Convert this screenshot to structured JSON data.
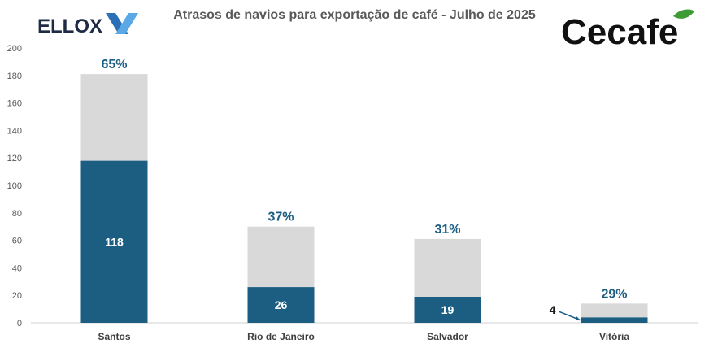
{
  "title": "Atrasos de navios para exportação de café - Julho de 2025",
  "logos": {
    "left": "ELLOX",
    "right": "Cecafe"
  },
  "colors": {
    "delayed": "#1b5e82",
    "total": "#d9d9d9",
    "percent_label": "#1b5e82",
    "small_label": "#1a1a1a"
  },
  "chart_data": {
    "type": "bar",
    "stacked": true,
    "categories": [
      "Santos",
      "Rio de Janeiro",
      "Salvador",
      "Vitória"
    ],
    "series": [
      {
        "values": [
          118,
          26,
          19,
          4
        ],
        "color": "#1b5e82"
      },
      {
        "values": [
          63,
          44,
          42,
          10
        ],
        "color": "#d9d9d9"
      }
    ],
    "totals": [
      181,
      70,
      61,
      14
    ],
    "percent_labels": [
      "65%",
      "37%",
      "31%",
      "29%"
    ],
    "value_labels": [
      "118",
      "26",
      "19",
      "4"
    ],
    "ylim": [
      0,
      200
    ],
    "yticks": [
      0,
      20,
      40,
      60,
      80,
      100,
      120,
      140,
      160,
      180,
      200
    ],
    "xlabel": "",
    "ylabel": "",
    "grid": false,
    "legend": "none"
  }
}
